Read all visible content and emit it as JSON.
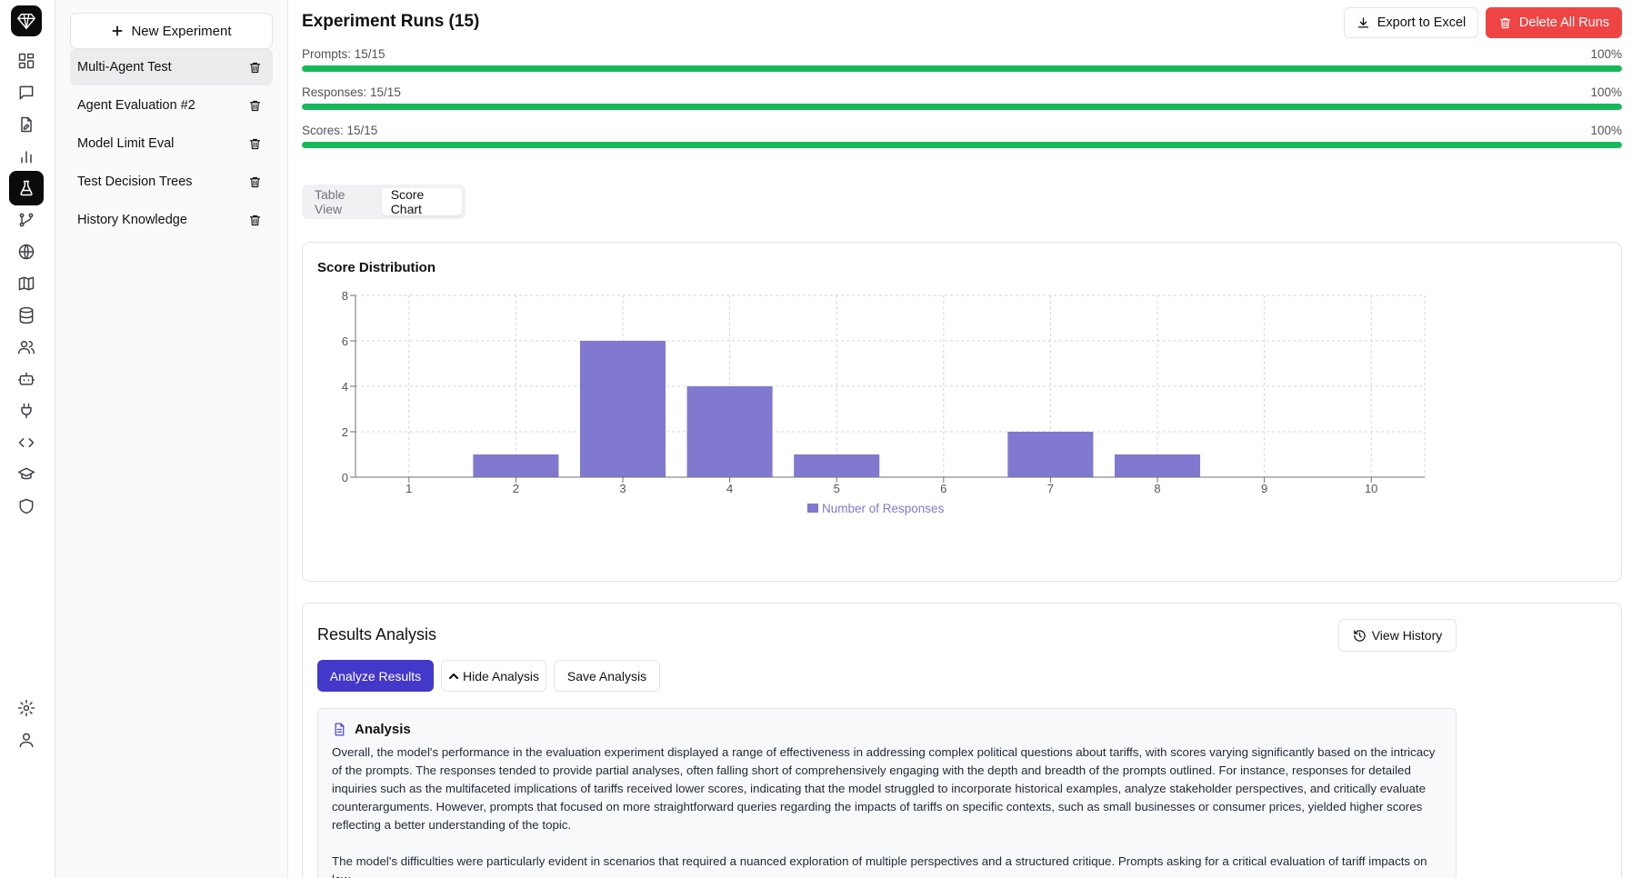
{
  "sidebar": {
    "new_experiment_label": "New Experiment",
    "experiments": [
      {
        "label": "Multi-Agent Test",
        "active": true
      },
      {
        "label": "Agent Evaluation #2",
        "active": false
      },
      {
        "label": "Model Limit Eval",
        "active": false
      },
      {
        "label": "Test Decision Trees",
        "active": false
      },
      {
        "label": "History Knowledge",
        "active": false
      }
    ]
  },
  "rail": {
    "items": [
      "dashboard-icon",
      "chat-icon",
      "document-edit-icon",
      "bar-chart-icon",
      "flask-icon",
      "git-branch-icon",
      "globe-icon",
      "map-icon",
      "database-icon",
      "users-icon",
      "bot-icon",
      "plug-icon",
      "code-icon",
      "graduation-cap-icon",
      "shield-icon",
      "settings-icon",
      "user-icon"
    ],
    "active": "flask-icon"
  },
  "header": {
    "title": "Experiment Runs (15)",
    "export_label": "Export to Excel",
    "delete_label": "Delete All Runs"
  },
  "progress": [
    {
      "label": "Prompts: 15/15",
      "percent_label": "100%",
      "value": 1.0
    },
    {
      "label": "Responses: 15/15",
      "percent_label": "100%",
      "value": 1.0
    },
    {
      "label": "Scores: 15/15",
      "percent_label": "100%",
      "value": 1.0
    }
  ],
  "view_tabs": {
    "table": "Table View",
    "chart": "Score Chart",
    "active": "chart"
  },
  "chart_card": {
    "title": "Score Distribution"
  },
  "chart_data": {
    "type": "bar",
    "categories": [
      "1",
      "2",
      "3",
      "4",
      "5",
      "6",
      "7",
      "8",
      "9",
      "10"
    ],
    "series": [
      {
        "name": "Number of Responses",
        "values": [
          0,
          1,
          6,
          4,
          1,
          0,
          2,
          1,
          0,
          0
        ]
      }
    ],
    "title": "Score Distribution",
    "xlabel": "",
    "ylabel": "",
    "ylim": [
      0,
      8
    ],
    "yticks": [
      "0",
      "2",
      "4",
      "6",
      "8"
    ],
    "grid": true,
    "legend": "bottom",
    "color": "#8079cf"
  },
  "results": {
    "title": "Results Analysis",
    "view_history_label": "View History",
    "analyze_label": "Analyze Results",
    "hide_label": "Hide Analysis",
    "save_label": "Save Analysis",
    "analysis_heading": "Analysis",
    "paragraphs": [
      "Overall, the model's performance in the evaluation experiment displayed a range of effectiveness in addressing complex political questions about tariffs, with scores varying significantly based on the intricacy of the prompts. The responses tended to provide partial analyses, often falling short of comprehensively engaging with the depth and breadth of the prompts outlined. For instance, responses for detailed inquiries such as the multifaceted implications of tariffs received lower scores, indicating that the model struggled to incorporate historical examples, analyze stakeholder perspectives, and critically evaluate counterarguments. However, prompts that focused on more straightforward queries regarding the impacts of tariffs on specific contexts, such as small businesses or consumer prices, yielded higher scores reflecting a better understanding of the topic.",
      "The model's difficulties were particularly evident in scenarios that required a nuanced exploration of multiple perspectives and a structured critique. Prompts asking for a critical evaluation of tariff impacts on low-"
    ],
    "accent": "#4338ca"
  },
  "colors": {
    "progress": "#16b85a",
    "delete": "#ef4444",
    "bar": "#8079cf"
  }
}
